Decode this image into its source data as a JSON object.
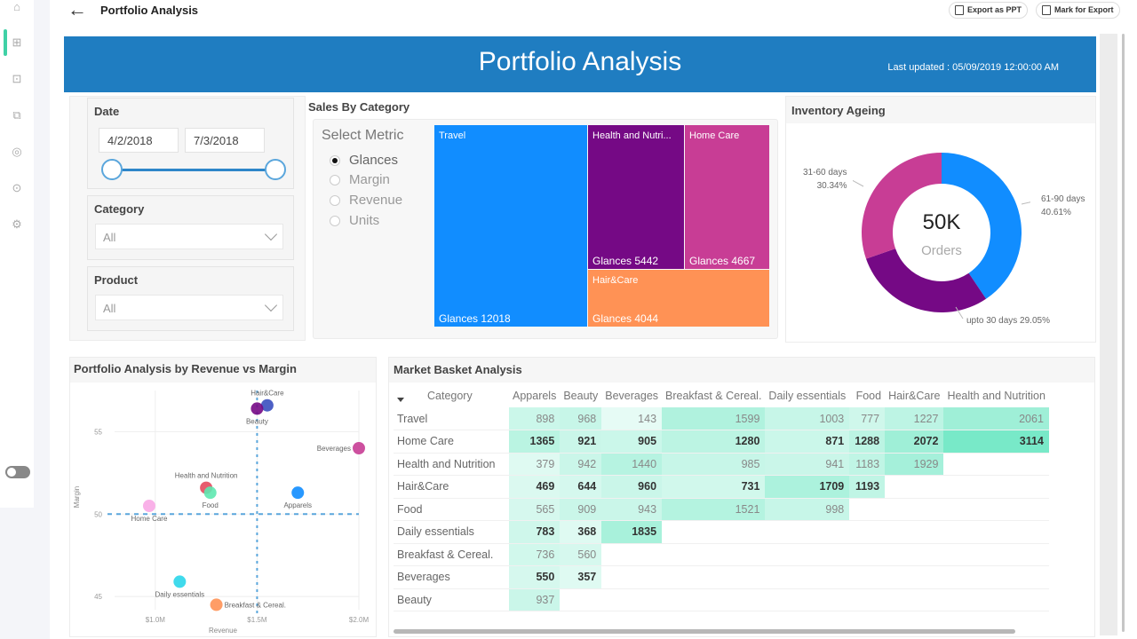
{
  "topbar": {
    "title": "Portfolio Analysis",
    "export_ppt": "Export as PPT",
    "mark_export": "Mark for Export"
  },
  "sidebar": {
    "icons": [
      "home-icon",
      "dashboard-icon",
      "crop-icon",
      "book-icon",
      "coins-icon",
      "target-icon",
      "settings-icon"
    ],
    "active": "dashboard-icon",
    "accent": "#3fd1a6"
  },
  "banner": {
    "title": "Portfolio Analysis",
    "last_updated": "Last updated :  05/09/2019 12:00:00 AM",
    "color": "#1f7dc1"
  },
  "filters": {
    "date_label": "Date",
    "date_start": "4/2/2018",
    "date_end": "7/3/2018",
    "category_label": "Category",
    "category_value": "All",
    "product_label": "Product",
    "product_value": "All"
  },
  "sales_by_category": {
    "title": "Sales By Category",
    "select_metric": "Select Metric",
    "metrics": [
      "Glances",
      "Margin",
      "Revenue",
      "Units"
    ],
    "selected_metric": "Glances",
    "treemap": [
      {
        "name": "Travel",
        "label": "Glances 12018",
        "value": 12018,
        "color": "#118dff"
      },
      {
        "name": "Health and Nutri...",
        "label": "Glances 5442",
        "value": 5442,
        "color": "#750985"
      },
      {
        "name": "Home Care",
        "label": "Glances 4667",
        "value": 4667,
        "color": "#c83d95"
      },
      {
        "name": "Hair&Care",
        "label": "Glances 4044",
        "value": 4044,
        "color": "#ff9255"
      }
    ]
  },
  "inventory_ageing": {
    "title": "Inventory Ageing",
    "center_value": "50K",
    "center_label": "Orders",
    "slices": [
      {
        "name": "61-90 days",
        "pct_label": "40.61%",
        "value": 40.61,
        "color": "#118dff"
      },
      {
        "name": "upto 30 days",
        "pct_label": "29.05%",
        "value": 29.05,
        "color": "#750985"
      },
      {
        "name": "31-60 days",
        "pct_label": "30.34%",
        "value": 30.34,
        "color": "#c83d95"
      }
    ],
    "label_upto30": "upto 30 days 29.05%"
  },
  "chart_data": {
    "type": "scatter",
    "title": "Portfolio Analysis by Revenue vs Margin",
    "xlabel": "Revenue",
    "ylabel": "Margin",
    "xlim": [
      0.8,
      2.0
    ],
    "ylim": [
      44.2,
      57.5
    ],
    "x_ticks": [
      {
        "v": 1.0,
        "label": "$1.0M"
      },
      {
        "v": 1.5,
        "label": "$1.5M"
      },
      {
        "v": 2.0,
        "label": "$2.0M"
      }
    ],
    "y_ticks": [
      {
        "v": 45,
        "label": "45"
      },
      {
        "v": 50,
        "label": "50"
      },
      {
        "v": 55,
        "label": "55"
      }
    ],
    "ref_x": 1.5,
    "ref_y": 50,
    "points": [
      {
        "name": "Hair&Care",
        "x": 1.55,
        "y": 56.6,
        "color": "#3a4fbf",
        "label_pos": "above"
      },
      {
        "name": "Beauty",
        "x": 1.5,
        "y": 56.4,
        "color": "#750985",
        "label_pos": "below"
      },
      {
        "name": "Beverages",
        "x": 2.0,
        "y": 54.0,
        "color": "#c83d95",
        "label_pos": "left"
      },
      {
        "name": "Health and Nutrition",
        "x": 1.25,
        "y": 51.6,
        "color": "#e44a5e",
        "label_pos": "above"
      },
      {
        "name": "Food",
        "x": 1.27,
        "y": 51.3,
        "color": "#5ee8b0",
        "label_pos": "below"
      },
      {
        "name": "Apparels",
        "x": 1.7,
        "y": 51.3,
        "color": "#118dff",
        "label_pos": "below"
      },
      {
        "name": "Home Care",
        "x": 0.97,
        "y": 50.5,
        "color": "#f8a8e6",
        "label_pos": "below"
      },
      {
        "name": "Daily essentials",
        "x": 1.12,
        "y": 45.9,
        "color": "#2bd6ea",
        "label_pos": "below"
      },
      {
        "name": "Breakfast & Cereal.",
        "x": 1.3,
        "y": 44.5,
        "color": "#ff9255",
        "label_pos": "right"
      }
    ]
  },
  "market_basket": {
    "title": "Market Basket Analysis",
    "corner_header": "Category",
    "columns": [
      "Apparels",
      "Beauty",
      "Beverages",
      "Breakfast & Cereal.",
      "Daily essentials",
      "Food",
      "Hair&Care",
      "Health and Nutrition"
    ],
    "rows": [
      {
        "name": "Travel",
        "values": [
          898,
          968,
          143,
          1599,
          1003,
          777,
          1227,
          2061
        ],
        "bold": false
      },
      {
        "name": "Home Care",
        "values": [
          1365,
          921,
          905,
          1280,
          871,
          1288,
          2072,
          3114
        ],
        "bold": true
      },
      {
        "name": "Health and Nutrition",
        "values": [
          379,
          942,
          1440,
          985,
          941,
          1183,
          1929,
          null
        ],
        "bold": false
      },
      {
        "name": "Hair&Care",
        "values": [
          469,
          644,
          960,
          731,
          1709,
          1193,
          null,
          null
        ],
        "bold": true
      },
      {
        "name": "Food",
        "values": [
          565,
          909,
          943,
          1521,
          998,
          null,
          null,
          null
        ],
        "bold": false
      },
      {
        "name": "Daily essentials",
        "values": [
          783,
          368,
          1835,
          null,
          null,
          null,
          null,
          null
        ],
        "bold": true
      },
      {
        "name": "Breakfast & Cereal.",
        "values": [
          736,
          560,
          null,
          null,
          null,
          null,
          null,
          null
        ],
        "bold": false
      },
      {
        "name": "Beverages",
        "values": [
          550,
          357,
          null,
          null,
          null,
          null,
          null,
          null
        ],
        "bold": true
      },
      {
        "name": "Beauty",
        "values": [
          937,
          null,
          null,
          null,
          null,
          null,
          null,
          null
        ],
        "bold": false
      }
    ],
    "heat_color": "#3fe0b0"
  }
}
